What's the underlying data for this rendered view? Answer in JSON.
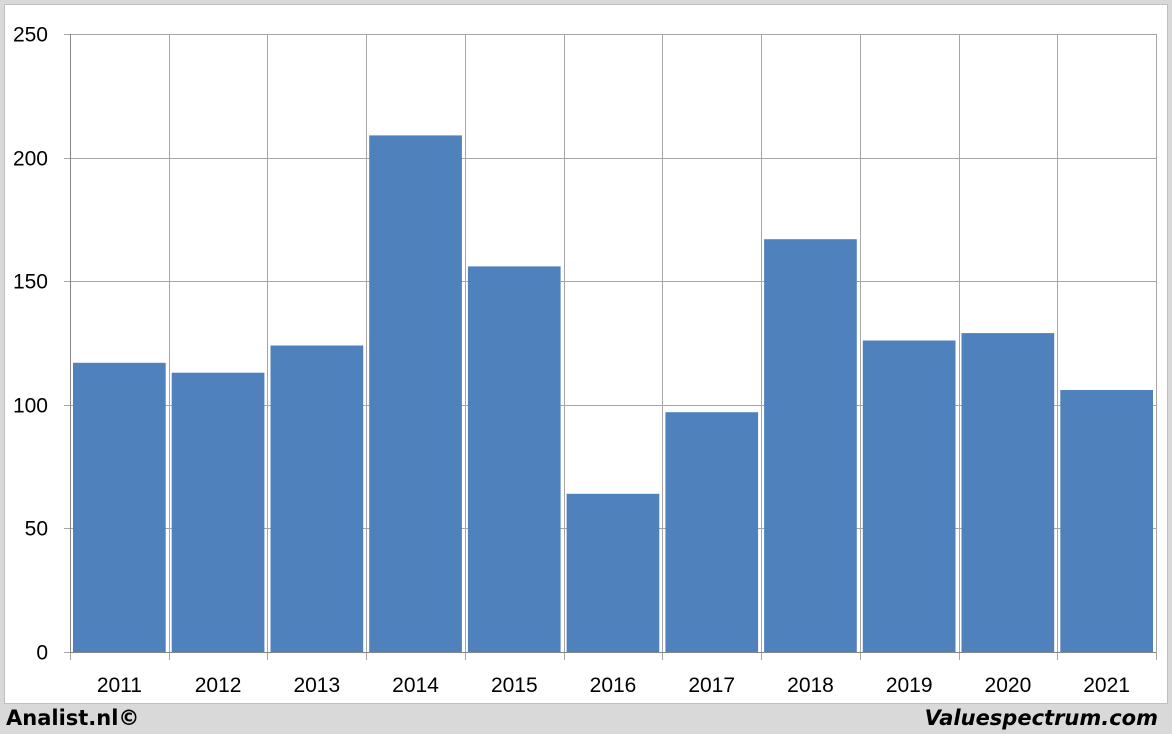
{
  "chart_data": {
    "type": "bar",
    "categories": [
      "2011",
      "2012",
      "2013",
      "2014",
      "2015",
      "2016",
      "2017",
      "2018",
      "2019",
      "2020",
      "2021"
    ],
    "values": [
      117,
      113,
      124,
      209,
      156,
      64,
      97,
      167,
      126,
      129,
      106
    ],
    "title": "",
    "xlabel": "",
    "ylabel": "",
    "ylim": [
      0,
      250
    ],
    "yticks": [
      "0",
      "50",
      "100",
      "150",
      "200",
      "250"
    ],
    "grid": true,
    "legend": "none",
    "bar_color": "#4f81bd",
    "grid_color": "#a6a6a6"
  },
  "footer": {
    "left_text": "Analist.nl©",
    "right_text": "Valuespectrum.com"
  }
}
